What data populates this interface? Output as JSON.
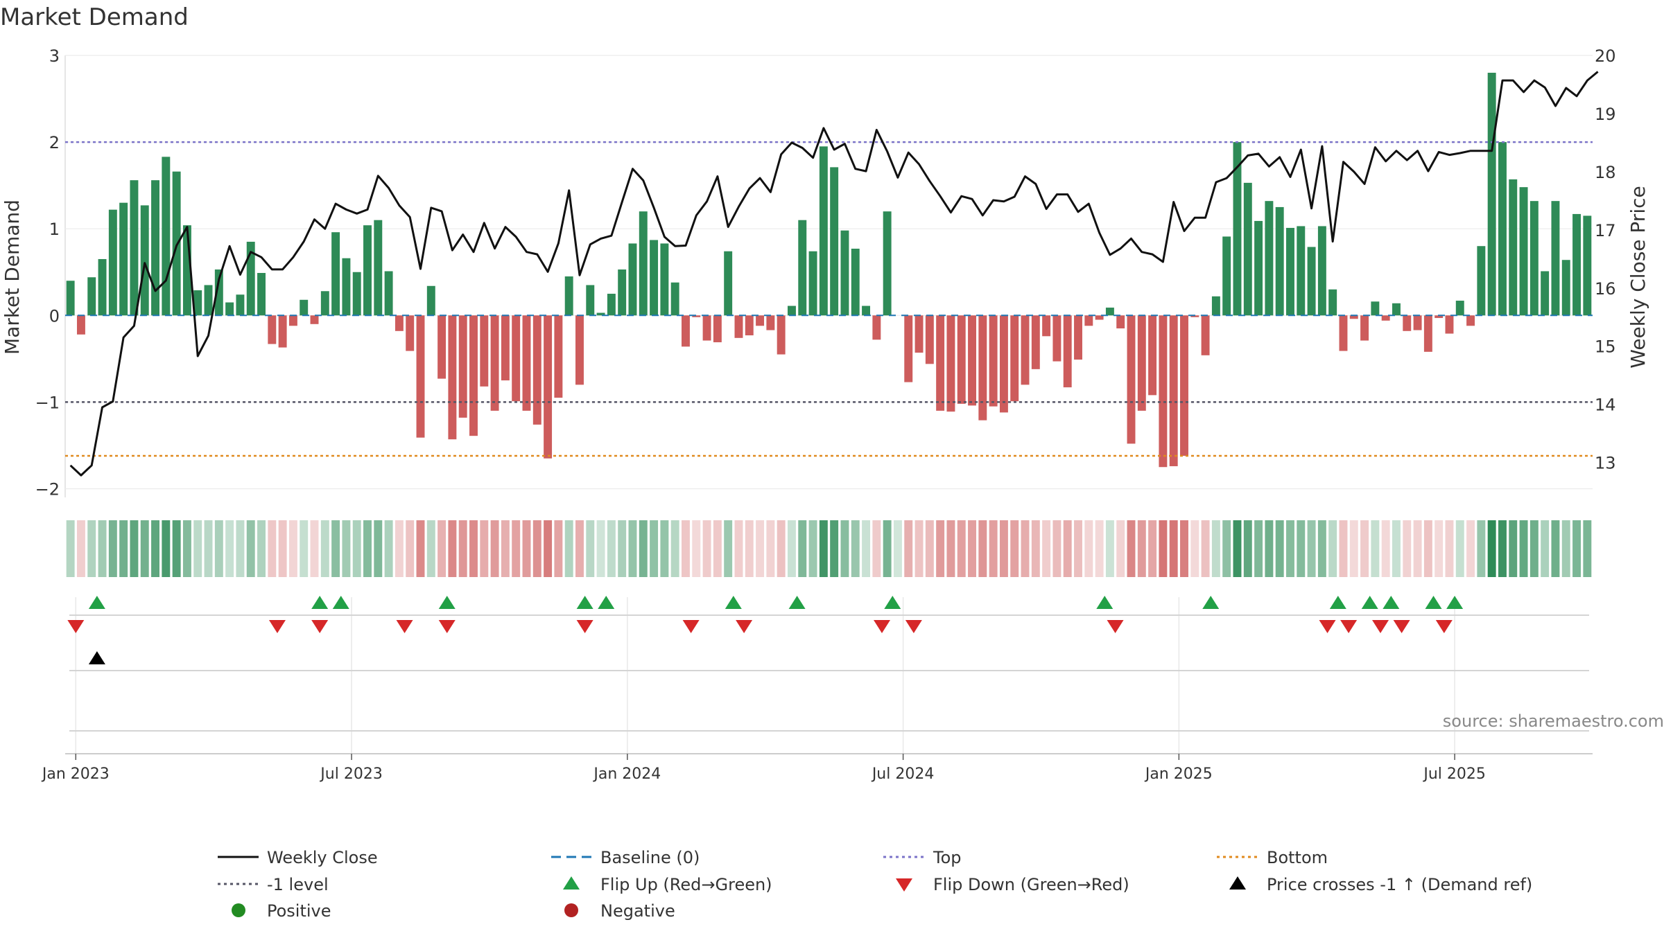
{
  "chart_data": {
    "type": "bar+line",
    "title": "Market Demand",
    "ylabel_left": "Market Demand",
    "ylabel_right": "Weekly Close Price",
    "source": "source: sharemaestro.com",
    "ylim_left": [
      -2.1,
      3.0
    ],
    "ylim_right": [
      12.4,
      20.0
    ],
    "left_ticks": [
      "3",
      "2",
      "1",
      "0",
      "−1",
      "−2"
    ],
    "left_tick_values": [
      3,
      2,
      1,
      0,
      -1,
      -2
    ],
    "right_ticks": [
      "20",
      "19",
      "18",
      "17",
      "16",
      "15",
      "14",
      "13"
    ],
    "right_tick_values": [
      20,
      19,
      18,
      17,
      16,
      15,
      14,
      13
    ],
    "x_tick_labels": [
      "Jan 2023",
      "Jul 2023",
      "Jan 2024",
      "Jul 2024",
      "Jan 2025",
      "Jul 2025"
    ],
    "x_tick_weeks": [
      1,
      27,
      53,
      79,
      105,
      131
    ],
    "reference_lines": {
      "top": 2.0,
      "minus_one": -1.0,
      "bottom": -1.62,
      "baseline": 0
    },
    "demand": [
      0.4,
      -0.22,
      0.44,
      0.65,
      1.22,
      1.3,
      1.56,
      1.27,
      1.56,
      1.83,
      1.66,
      1.04,
      0.29,
      0.35,
      0.53,
      0.15,
      0.24,
      0.85,
      0.49,
      -0.33,
      -0.37,
      -0.12,
      0.18,
      -0.1,
      0.28,
      0.96,
      0.66,
      0.5,
      1.04,
      1.1,
      0.51,
      -0.18,
      -0.41,
      -1.41,
      0.34,
      -0.73,
      -1.43,
      -1.18,
      -1.39,
      -0.82,
      -1.1,
      -0.75,
      -0.99,
      -1.1,
      -1.26,
      -1.65,
      -0.95,
      0.45,
      -0.8,
      0.35,
      0.03,
      0.25,
      0.53,
      0.83,
      1.2,
      0.87,
      0.83,
      0.38,
      -0.36,
      -0.02,
      -0.29,
      -0.31,
      0.74,
      -0.26,
      -0.23,
      -0.12,
      -0.17,
      -0.45,
      0.11,
      1.1,
      0.74,
      1.95,
      1.71,
      0.98,
      0.77,
      0.11,
      -0.28,
      1.2,
      0.0,
      -0.77,
      -0.43,
      -0.56,
      -1.1,
      -1.11,
      -1.02,
      -1.04,
      -1.21,
      -1.05,
      -1.12,
      -0.99,
      -0.8,
      -0.62,
      -0.24,
      -0.53,
      -0.83,
      -0.51,
      -0.12,
      -0.05,
      0.09,
      -0.15,
      -1.48,
      -1.1,
      -0.92,
      -1.75,
      -1.74,
      -1.62,
      -0.02,
      -0.46,
      0.22,
      0.91,
      2.0,
      1.53,
      1.09,
      1.32,
      1.25,
      1.01,
      1.03,
      0.79,
      1.03,
      0.3,
      -0.41,
      -0.04,
      -0.29,
      0.16,
      -0.06,
      0.14,
      -0.18,
      -0.17,
      -0.42,
      -0.03,
      -0.21,
      0.17,
      -0.12,
      0.8,
      2.8,
      2.0,
      1.57,
      1.48,
      1.32,
      0.51,
      1.32,
      0.64,
      1.17,
      1.15
    ],
    "close": [
      12.95,
      12.78,
      12.95,
      13.95,
      14.05,
      15.15,
      15.35,
      16.43,
      15.95,
      16.13,
      16.73,
      17.05,
      14.83,
      15.18,
      16.15,
      16.72,
      16.23,
      16.62,
      16.53,
      16.32,
      16.32,
      16.53,
      16.8,
      17.18,
      17.02,
      17.45,
      17.35,
      17.28,
      17.35,
      17.93,
      17.72,
      17.42,
      17.22,
      16.33,
      17.38,
      17.32,
      16.65,
      16.92,
      16.62,
      17.12,
      16.68,
      17.05,
      16.88,
      16.62,
      16.58,
      16.28,
      16.77,
      17.68,
      16.22,
      16.75,
      16.85,
      16.9,
      17.48,
      18.05,
      17.85,
      17.38,
      16.88,
      16.72,
      16.73,
      17.25,
      17.49,
      17.92,
      17.05,
      17.4,
      17.71,
      17.89,
      17.65,
      18.3,
      18.5,
      18.41,
      18.24,
      18.75,
      18.38,
      18.48,
      18.05,
      18.01,
      18.72,
      18.35,
      17.9,
      18.33,
      18.13,
      17.84,
      17.58,
      17.3,
      17.58,
      17.53,
      17.25,
      17.51,
      17.49,
      17.57,
      17.92,
      17.79,
      17.36,
      17.61,
      17.61,
      17.31,
      17.45,
      16.95,
      16.57,
      16.68,
      16.85,
      16.62,
      16.58,
      16.45,
      17.48,
      16.98,
      17.21,
      17.21,
      17.82,
      17.89,
      18.08,
      18.28,
      18.31,
      18.09,
      18.25,
      17.91,
      18.38,
      17.37,
      18.44,
      16.8,
      18.17,
      18.0,
      17.79,
      18.42,
      18.18,
      18.36,
      18.2,
      18.36,
      18.01,
      18.34,
      18.29,
      18.32,
      18.36,
      18.36,
      18.36,
      19.57,
      19.57,
      19.37,
      19.57,
      19.45,
      19.13,
      19.44,
      19.3,
      19.57,
      19.72
    ]
  },
  "signals": {
    "flip_up_weeks": [
      3,
      24,
      26,
      36,
      49,
      51,
      63,
      69,
      78,
      98,
      108,
      120,
      123,
      125,
      129,
      131
    ],
    "flip_down_weeks": [
      1,
      20,
      24,
      32,
      36,
      49,
      59,
      64,
      77,
      80,
      99,
      119,
      121,
      124,
      126,
      130
    ],
    "price_cross_weeks": [
      3
    ]
  },
  "legend": {
    "weekly_close": "Weekly Close",
    "baseline": "Baseline (0)",
    "top": "Top",
    "bottom": "Bottom",
    "minus_one": "-1 level",
    "flip_up": "Flip Up (Red→Green)",
    "flip_down": "Flip Down (Green→Red)",
    "price_cross": "Price crosses -1 ↑ (Demand ref)",
    "positive": "Positive",
    "negative": "Negative"
  },
  "colors": {
    "positive_bar": "#2e8b57",
    "negative_bar": "#cd5c5c",
    "close_line": "#111111",
    "baseline": "#1f77b4",
    "top": "#7b73c9",
    "minus_one": "#555566",
    "bottom": "#e08a1e",
    "flip_up": "#22a046",
    "flip_down": "#d62728",
    "price_cross": "#000000",
    "legend_positive": "#228b22",
    "legend_negative": "#b22222"
  }
}
